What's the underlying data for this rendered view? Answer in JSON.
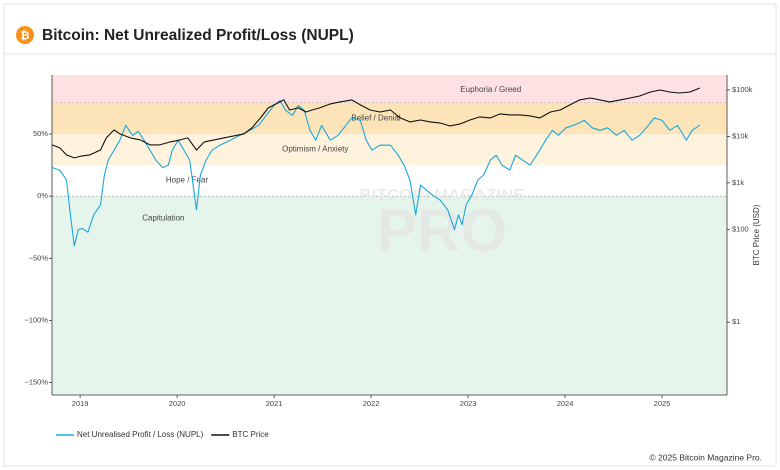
{
  "header": {
    "title": "Bitcoin: Net Unrealized Profit/Loss (NUPL)"
  },
  "chart_data": {
    "type": "line",
    "xlim": [
      2018.71,
      2025.67
    ],
    "xticks": [
      2019,
      2020,
      2021,
      2022,
      2023,
      2024,
      2025
    ],
    "ylim": [
      -160,
      97.5
    ],
    "yticks": [
      {
        "value": 50,
        "label": "50%"
      },
      {
        "value": 0,
        "label": "0%"
      },
      {
        "value": -50,
        "label": "−50%"
      },
      {
        "value": -100,
        "label": "−100%"
      },
      {
        "value": -150,
        "label": "−150%"
      }
    ],
    "y2lim": [
      0.027,
      210000
    ],
    "y2scale": "log",
    "y2ticks": [
      {
        "value": 100000,
        "label": "$100k"
      },
      {
        "value": 10000,
        "label": "$10k"
      },
      {
        "value": 1000,
        "label": "$1k"
      },
      {
        "value": 100,
        "label": "$100"
      },
      {
        "value": 1,
        "label": "$1"
      }
    ],
    "y2label": "BTC Price (USD)",
    "zones": [
      {
        "label": "Euphoria / Greed",
        "from": 75,
        "color": "#fde1e3",
        "line": true
      },
      {
        "label": "Belief / Denial",
        "from": 50,
        "to": 75,
        "color": "#fde4b8"
      },
      {
        "label": "Optimism / Anxiety",
        "from": 25,
        "to": 50,
        "color": "#fff3de"
      },
      {
        "label": "Hope / Fear",
        "from": 0,
        "to": 25,
        "color": "#ffffff"
      },
      {
        "label": "Capitulation",
        "to": 0,
        "color": "#e5f5eb",
        "line": true
      }
    ],
    "watermark": [
      "BITCOIN MAGAZINE",
      "PRO"
    ],
    "series": [
      {
        "name": "Net Unrealised Profit / Loss (NUPL)",
        "color": "#1aa7dc",
        "x": [
          2018.71,
          2018.79,
          2018.86,
          2018.9,
          2018.94,
          2018.98,
          2019.02,
          2019.08,
          2019.14,
          2019.21,
          2019.25,
          2019.29,
          2019.35,
          2019.41,
          2019.47,
          2019.54,
          2019.6,
          2019.66,
          2019.72,
          2019.78,
          2019.85,
          2019.91,
          2019.95,
          2020.01,
          2020.07,
          2020.13,
          2020.2,
          2020.24,
          2020.3,
          2020.36,
          2020.44,
          2020.55,
          2020.65,
          2020.75,
          2020.84,
          2020.92,
          2021.0,
          2021.06,
          2021.12,
          2021.19,
          2021.25,
          2021.31,
          2021.37,
          2021.43,
          2021.49,
          2021.58,
          2021.66,
          2021.74,
          2021.8,
          2021.89,
          2021.95,
          2022.01,
          2022.09,
          2022.2,
          2022.28,
          2022.34,
          2022.4,
          2022.46,
          2022.51,
          2022.57,
          2022.63,
          2022.71,
          2022.79,
          2022.86,
          2022.9,
          2022.94,
          2022.98,
          2023.04,
          2023.1,
          2023.16,
          2023.23,
          2023.29,
          2023.35,
          2023.43,
          2023.49,
          2023.56,
          2023.64,
          2023.74,
          2023.8,
          2023.87,
          2023.93,
          2024.01,
          2024.09,
          2024.2,
          2024.28,
          2024.36,
          2024.44,
          2024.53,
          2024.61,
          2024.69,
          2024.77,
          2024.86,
          2024.92,
          2025.0,
          2025.08,
          2025.16,
          2025.25,
          2025.31,
          2025.39
        ],
        "values": [
          23,
          21,
          13,
          -15,
          -40,
          -27,
          -26,
          -29,
          -15,
          -7,
          17,
          29,
          37,
          45,
          57,
          49,
          52,
          45,
          37,
          29,
          23,
          25,
          37,
          45,
          37,
          29,
          -11,
          17,
          29,
          37,
          41,
          45,
          49,
          53,
          57,
          65,
          73,
          77,
          69,
          65,
          73,
          69,
          53,
          45,
          57,
          45,
          49,
          57,
          63,
          61,
          45,
          37,
          41,
          41,
          33,
          25,
          13,
          -15,
          9,
          5,
          1,
          -3,
          -11,
          -27,
          -15,
          -23,
          -7,
          1,
          13,
          17,
          29,
          33,
          25,
          21,
          33,
          29,
          25,
          37,
          45,
          53,
          49,
          55,
          57,
          61,
          55,
          53,
          55,
          49,
          53,
          45,
          49,
          57,
          63,
          61,
          53,
          57,
          45,
          53,
          57
        ]
      },
      {
        "name": "BTC Price",
        "color": "#111111",
        "axis": "y2",
        "x": [
          2018.71,
          2018.79,
          2018.86,
          2018.94,
          2019.02,
          2019.1,
          2019.21,
          2019.27,
          2019.35,
          2019.41,
          2019.52,
          2019.62,
          2019.72,
          2019.82,
          2019.93,
          2020.03,
          2020.11,
          2020.2,
          2020.28,
          2020.38,
          2020.48,
          2020.59,
          2020.69,
          2020.77,
          2020.86,
          2020.94,
          2021.02,
          2021.1,
          2021.16,
          2021.25,
          2021.33,
          2021.39,
          2021.47,
          2021.58,
          2021.68,
          2021.8,
          2021.89,
          2021.99,
          2022.09,
          2022.2,
          2022.3,
          2022.4,
          2022.51,
          2022.61,
          2022.71,
          2022.81,
          2022.92,
          2023.02,
          2023.12,
          2023.23,
          2023.33,
          2023.43,
          2023.54,
          2023.64,
          2023.74,
          2023.85,
          2023.95,
          2024.05,
          2024.15,
          2024.26,
          2024.36,
          2024.46,
          2024.57,
          2024.67,
          2024.77,
          2024.88,
          2024.98,
          2025.08,
          2025.18,
          2025.29,
          2025.39
        ],
        "values": [
          6560,
          5660,
          4000,
          3450,
          3800,
          4000,
          5100,
          9300,
          13800,
          11300,
          9300,
          8400,
          6560,
          6560,
          7600,
          8400,
          9300,
          5100,
          7600,
          8400,
          9300,
          10300,
          11300,
          15200,
          25000,
          41000,
          50000,
          61000,
          37100,
          41000,
          33600,
          37100,
          41000,
          50000,
          55200,
          61000,
          47600,
          37100,
          33600,
          37100,
          25000,
          20500,
          22600,
          20500,
          19500,
          16800,
          18600,
          22600,
          26300,
          25000,
          30500,
          29000,
          29000,
          27600,
          25000,
          33600,
          37100,
          47600,
          61000,
          67300,
          61000,
          55200,
          61000,
          67300,
          74300,
          90600,
          100000,
          90600,
          86200,
          90600,
          110000
        ]
      }
    ]
  },
  "footer": {
    "copyright": "© 2025 Bitcoin Magazine Pro."
  }
}
